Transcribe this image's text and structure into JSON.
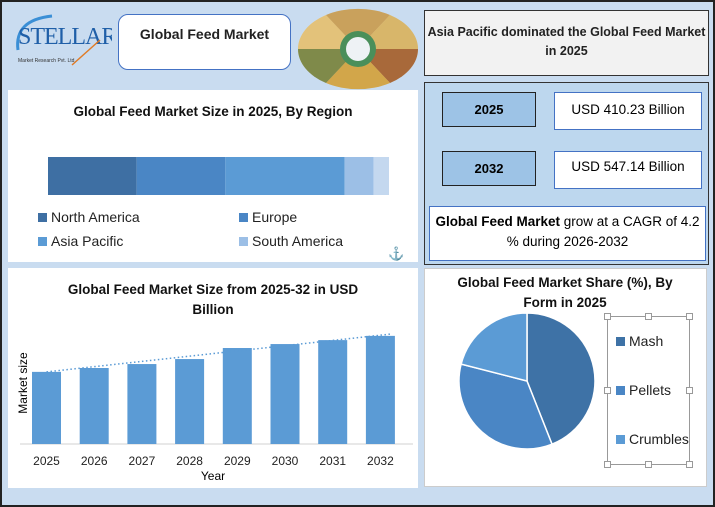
{
  "header": {
    "logo_text": "STELLAR",
    "logo_sub": "Market Research Pvt. Ltd.",
    "title": "Global Feed Market"
  },
  "highlight": "Asia Pacific dominated the Global Feed Market in 2025",
  "stats": {
    "rows": [
      {
        "year": "2025",
        "value": "USD 410.23 Billion"
      },
      {
        "year": "2032",
        "value": "USD 547.14 Billion"
      }
    ],
    "cagr_bold": "Global Feed Market",
    "cagr_rest": " grow at a CAGR of 4.2 % during 2026-2032"
  },
  "chart_data": [
    {
      "type": "bar",
      "orientation": "horizontal-stacked",
      "title": "Global Feed Market Size in 2025, By Region",
      "unit": "percent share (estimated)",
      "series": [
        {
          "name": "North America",
          "value": 26,
          "color": "#3e6fa3"
        },
        {
          "name": "Europe",
          "value": 26,
          "color": "#4a86c5"
        },
        {
          "name": "Asia Pacific",
          "value": 35,
          "color": "#5b9bd5"
        },
        {
          "name": "South America",
          "value": 8.5,
          "color": "#9cbfe6"
        },
        {
          "name": "",
          "value": 4.5,
          "color": "#c4d8ef"
        }
      ],
      "legend": "bottom"
    },
    {
      "type": "bar",
      "title": "Global Feed Market  Size from 2025-32 in USD Billion",
      "xlabel": "Year",
      "ylabel": "Market size",
      "categories": [
        "2025",
        "2026",
        "2027",
        "2028",
        "2029",
        "2030",
        "2031",
        "2032"
      ],
      "values": [
        410.23,
        425,
        440,
        459,
        501,
        516,
        531,
        547.14
      ],
      "color": "#5b9bd5",
      "trendline": "dotted linear",
      "grid": false
    },
    {
      "type": "pie",
      "title": "Global Feed Market Share (%), By Form in 2025",
      "categories": [
        "Mash",
        "Pellets",
        "Crumbles"
      ],
      "values": [
        44,
        35,
        21
      ],
      "colors": [
        "#3e72a6",
        "#4a86c5",
        "#5b9bd5"
      ],
      "legend": "right"
    }
  ]
}
